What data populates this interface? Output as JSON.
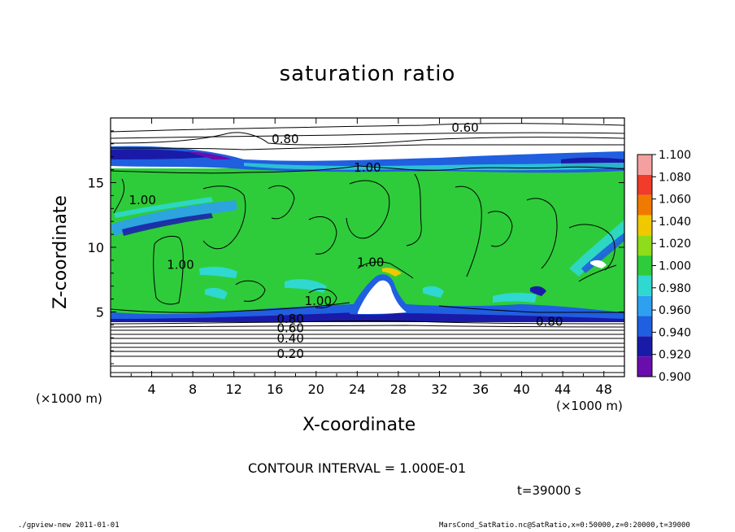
{
  "chart_data": {
    "type": "heatmap",
    "title": "saturation ratio",
    "xlabel": "X-coordinate",
    "ylabel": "Z-coordinate",
    "x_unit_label": "(×1000 m)",
    "y_unit_label": "(×1000 m)",
    "xlim": [
      0,
      50
    ],
    "ylim": [
      0,
      20
    ],
    "x_ticks": [
      4,
      8,
      12,
      16,
      20,
      24,
      28,
      32,
      36,
      40,
      44,
      48
    ],
    "y_ticks": [
      5,
      10,
      15
    ],
    "colorbar": {
      "levels": [
        0.9,
        0.92,
        0.94,
        0.96,
        0.98,
        1.0,
        1.02,
        1.04,
        1.06,
        1.08,
        1.1
      ],
      "labels": [
        "0.900",
        "0.920",
        "0.940",
        "0.960",
        "0.980",
        "1.000",
        "1.020",
        "1.040",
        "1.060",
        "1.080",
        "1.100"
      ],
      "colors": [
        "#6a0dad",
        "#1a1aa8",
        "#1f5fe0",
        "#2ea0f0",
        "#2fd8d0",
        "#2ecc3a",
        "#8fdc1a",
        "#f0c800",
        "#f07a00",
        "#f03c28",
        "#f4a0a0"
      ]
    },
    "contour_labels": [
      {
        "text": "0.60",
        "x": 34.5,
        "z": 19.0
      },
      {
        "text": "0.80",
        "x": 17.0,
        "z": 18.1
      },
      {
        "text": "1.00",
        "x": 25.0,
        "z": 15.9
      },
      {
        "text": "1.00",
        "x": 3.1,
        "z": 13.4
      },
      {
        "text": "1.00",
        "x": 6.8,
        "z": 8.4
      },
      {
        "text": "1.00",
        "x": 25.3,
        "z": 8.6
      },
      {
        "text": "1.00",
        "x": 20.2,
        "z": 5.6
      },
      {
        "text": "0.80",
        "x": 17.5,
        "z": 4.2
      },
      {
        "text": "0.80",
        "x": 42.7,
        "z": 4.0
      },
      {
        "text": "0.60",
        "x": 17.5,
        "z": 3.5
      },
      {
        "text": "0.40",
        "x": 17.5,
        "z": 2.7
      },
      {
        "text": "0.20",
        "x": 17.5,
        "z": 1.5
      }
    ],
    "grid": false
  },
  "contour_interval": "CONTOUR INTERVAL = 1.000E-01",
  "time_label": "t=39000 s",
  "footer_left": "./gpview-new  2011-01-01",
  "footer_right": "MarsCond_SatRatio.nc@SatRatio,x=0:50000,z=0:20000,t=39000"
}
